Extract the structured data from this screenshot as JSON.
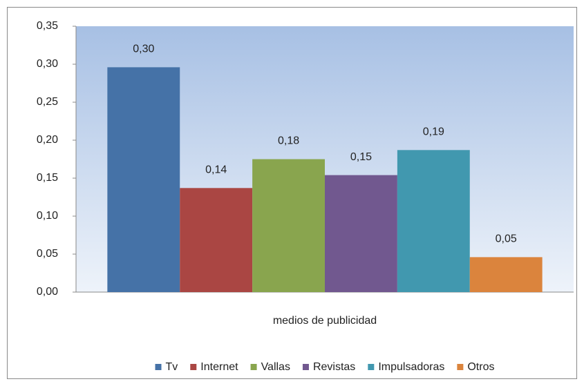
{
  "chart_data": {
    "type": "bar",
    "categories": [
      "medios de publicidad"
    ],
    "series": [
      {
        "name": "Tv",
        "color": "#4572a7",
        "values": [
          0.296
        ],
        "value_labels": [
          "0,30"
        ]
      },
      {
        "name": "Internet",
        "color": "#aa4643",
        "values": [
          0.137
        ],
        "value_labels": [
          "0,14"
        ]
      },
      {
        "name": "Vallas",
        "color": "#89a54e",
        "values": [
          0.175
        ],
        "value_labels": [
          "0,18"
        ]
      },
      {
        "name": "Revistas",
        "color": "#71588f",
        "values": [
          0.154
        ],
        "value_labels": [
          "0,15"
        ]
      },
      {
        "name": "Impulsadoras",
        "color": "#4198af",
        "values": [
          0.187
        ],
        "value_labels": [
          "0,19"
        ]
      },
      {
        "name": "Otros",
        "color": "#db843d",
        "values": [
          0.046
        ],
        "value_labels": [
          "0,05"
        ]
      }
    ],
    "ylim": [
      0,
      0.35
    ],
    "yticks": [
      {
        "value": 0,
        "label": "0,00"
      },
      {
        "value": 0.05,
        "label": "0,05"
      },
      {
        "value": 0.1,
        "label": "0,10"
      },
      {
        "value": 0.15,
        "label": "0,15"
      },
      {
        "value": 0.2,
        "label": "0,20"
      },
      {
        "value": 0.25,
        "label": "0,25"
      },
      {
        "value": 0.3,
        "label": "0,30"
      },
      {
        "value": 0.35,
        "label": "0,35"
      }
    ],
    "legend": "bottom"
  }
}
